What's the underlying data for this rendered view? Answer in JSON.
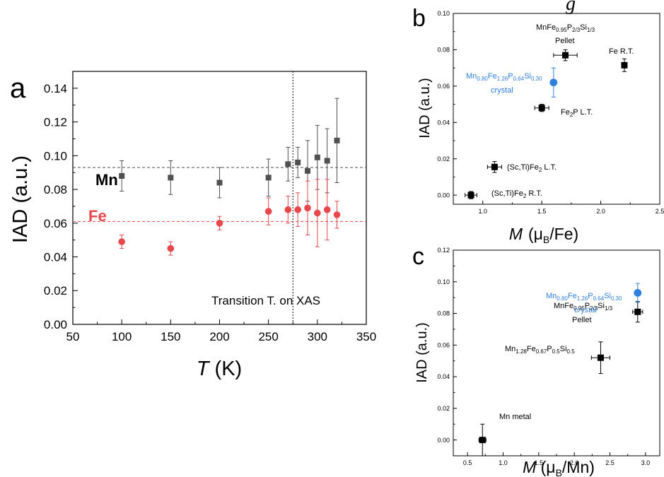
{
  "header_fragment": "g",
  "colors": {
    "mn": "#505050",
    "fe": "#e8474c",
    "black": "#000000",
    "blue": "#2f80dd"
  },
  "chart_data": [
    {
      "id": "a",
      "panel_label": "a",
      "type": "scatter",
      "xlabel_italic": "T",
      "xlabel_rest": " (K)",
      "ylabel": "IAD (a.u.)",
      "xlim": [
        50,
        350
      ],
      "ylim": [
        0,
        0.15
      ],
      "xticks": [
        50,
        100,
        150,
        200,
        250,
        300,
        350
      ],
      "yticks": [
        "0.00",
        "0.02",
        "0.04",
        "0.06",
        "0.08",
        "0.10",
        "0.12",
        "0.14"
      ],
      "series": [
        {
          "name": "Mn",
          "color": "#505050",
          "marker": "square",
          "reference_line": 0.093,
          "points": [
            {
              "x": 100,
              "y": 0.088,
              "err": 0.009
            },
            {
              "x": 150,
              "y": 0.087,
              "err": 0.01
            },
            {
              "x": 200,
              "y": 0.084,
              "err": 0.009
            },
            {
              "x": 250,
              "y": 0.087,
              "err": 0.011
            },
            {
              "x": 270,
              "y": 0.095,
              "err": 0.01
            },
            {
              "x": 280,
              "y": 0.096,
              "err": 0.009
            },
            {
              "x": 290,
              "y": 0.091,
              "err": 0.018
            },
            {
              "x": 300,
              "y": 0.099,
              "err": 0.019
            },
            {
              "x": 310,
              "y": 0.097,
              "err": 0.019
            },
            {
              "x": 320,
              "y": 0.109,
              "err": 0.025
            }
          ]
        },
        {
          "name": "Fe",
          "color": "#e8474c",
          "marker": "circle",
          "reference_line": 0.061,
          "points": [
            {
              "x": 100,
              "y": 0.049,
              "err": 0.004
            },
            {
              "x": 150,
              "y": 0.045,
              "err": 0.004
            },
            {
              "x": 200,
              "y": 0.06,
              "err": 0.004
            },
            {
              "x": 250,
              "y": 0.067,
              "err": 0.008
            },
            {
              "x": 270,
              "y": 0.068,
              "err": 0.008
            },
            {
              "x": 280,
              "y": 0.068,
              "err": 0.01
            },
            {
              "x": 290,
              "y": 0.069,
              "err": 0.016
            },
            {
              "x": 300,
              "y": 0.066,
              "err": 0.02
            },
            {
              "x": 310,
              "y": 0.068,
              "err": 0.018
            },
            {
              "x": 320,
              "y": 0.065,
              "err": 0.008
            }
          ]
        }
      ],
      "vline_x": 275,
      "annotation": "Transition T. on XAS"
    },
    {
      "id": "b",
      "panel_label": "b",
      "type": "scatter",
      "xlabel_italic": "M",
      "xlabel_rest": "  (μB/Fe)",
      "xlabel_pre": "(μ",
      "xlabel_sub": "B",
      "xlabel_post": "/Fe)",
      "ylabel": "IAD (a.u.)",
      "xlim": [
        0.75,
        2.5
      ],
      "ylim": [
        -0.005,
        0.1
      ],
      "xticks": [
        "1.0",
        "1.5",
        "2.0",
        "2.5"
      ],
      "yticks": [
        "0.00",
        "0.02",
        "0.04",
        "0.06",
        "0.08",
        "0.10"
      ],
      "points": [
        {
          "x": 0.9,
          "y": 0.0,
          "xerr": 0.05,
          "yerr": 0.002,
          "color": "#000000",
          "marker": "square",
          "label": "(Sc,Ti)Fe2 R.T."
        },
        {
          "x": 1.1,
          "y": 0.0155,
          "xerr": 0.06,
          "yerr": 0.003,
          "color": "#000000",
          "marker": "square",
          "label": "(Sc,Ti)Fe2 L.T."
        },
        {
          "x": 1.5,
          "y": 0.048,
          "xerr": 0.06,
          "yerr": 0.002,
          "color": "#000000",
          "marker": "square",
          "label": "Fe2P L.T."
        },
        {
          "x": 1.6,
          "y": 0.062,
          "xerr": 0.0,
          "yerr": 0.008,
          "color": "#2f80dd",
          "marker": "circle",
          "label": "Mn0.80Fe1.26P0.64Si0.30 crystal"
        },
        {
          "x": 1.7,
          "y": 0.077,
          "xerr": 0.1,
          "yerr": 0.003,
          "color": "#000000",
          "marker": "square",
          "label": "MnFe0.95P2/3Si1/3 Pellet"
        },
        {
          "x": 2.2,
          "y": 0.0715,
          "xerr": 0.0,
          "yerr": 0.0035,
          "color": "#000000",
          "marker": "square",
          "label": "Fe R.T."
        }
      ],
      "labels": {
        "sc_rt": [
          "(Sc,Ti)Fe",
          "2",
          " R.T."
        ],
        "sc_lt": [
          "(Sc,Ti)Fe",
          "2",
          " L.T."
        ],
        "fe2p": [
          "Fe",
          "2",
          "P L.T."
        ],
        "mn_crystal": [
          "Mn",
          "0.80",
          "Fe",
          "1.26",
          "P",
          "0.64",
          "Si",
          "0.30"
        ],
        "crystal": "crystal",
        "mnfe": [
          "MnFe",
          "0.95",
          "P",
          "2/3",
          "Si",
          "1/3"
        ],
        "pellet": "Pellet",
        "fe_rt": "Fe R.T."
      }
    },
    {
      "id": "c",
      "panel_label": "c",
      "type": "scatter",
      "xlabel_italic": "M",
      "xlabel_pre": " (μ",
      "xlabel_sub": "B",
      "xlabel_post": "/Mn)",
      "ylabel": "IAD (a.u.)",
      "xlim": [
        0.3,
        3.2
      ],
      "ylim": [
        -0.01,
        0.12
      ],
      "xticks": [
        "0.5",
        "1.0",
        "1.5",
        "2.0",
        "2.5",
        "3.0"
      ],
      "yticks": [
        "0.00",
        "0.02",
        "0.04",
        "0.06",
        "0.08",
        "0.10",
        "0.12"
      ],
      "points": [
        {
          "x": 0.71,
          "y": 0.0,
          "xerr": 0.05,
          "yerr": 0.01,
          "color": "#000000",
          "marker": "square",
          "label": "Mn metal"
        },
        {
          "x": 2.37,
          "y": 0.052,
          "xerr": 0.13,
          "yerr": 0.01,
          "color": "#000000",
          "marker": "square",
          "label": "Mn1.28Fe0.67P0.5Si0.5"
        },
        {
          "x": 2.89,
          "y": 0.081,
          "xerr": 0.07,
          "yerr": 0.0065,
          "color": "#000000",
          "marker": "square",
          "label": "MnFe0.95P2/3Si1/3 Pellet"
        },
        {
          "x": 2.89,
          "y": 0.093,
          "xerr": 0.0,
          "yerr": 0.006,
          "color": "#2f80dd",
          "marker": "circle",
          "label": "Mn0.80Fe1.26P0.64Si0.30 crystal"
        }
      ],
      "labels": {
        "mn_metal": "Mn metal",
        "mn128": [
          "Mn",
          "1.28",
          "Fe",
          "0.67",
          "P",
          "0.5",
          "Si",
          "0.5"
        ],
        "mnfe": [
          "MnFe",
          "0.95",
          "P",
          "2/3",
          "Si",
          "1/3"
        ],
        "pellet": "Pellet",
        "mn_crystal": [
          "Mn",
          "0.80",
          "Fe",
          "1.26",
          "P",
          "0.64",
          "Si",
          "0.30"
        ],
        "crystal": "crystal"
      }
    }
  ]
}
